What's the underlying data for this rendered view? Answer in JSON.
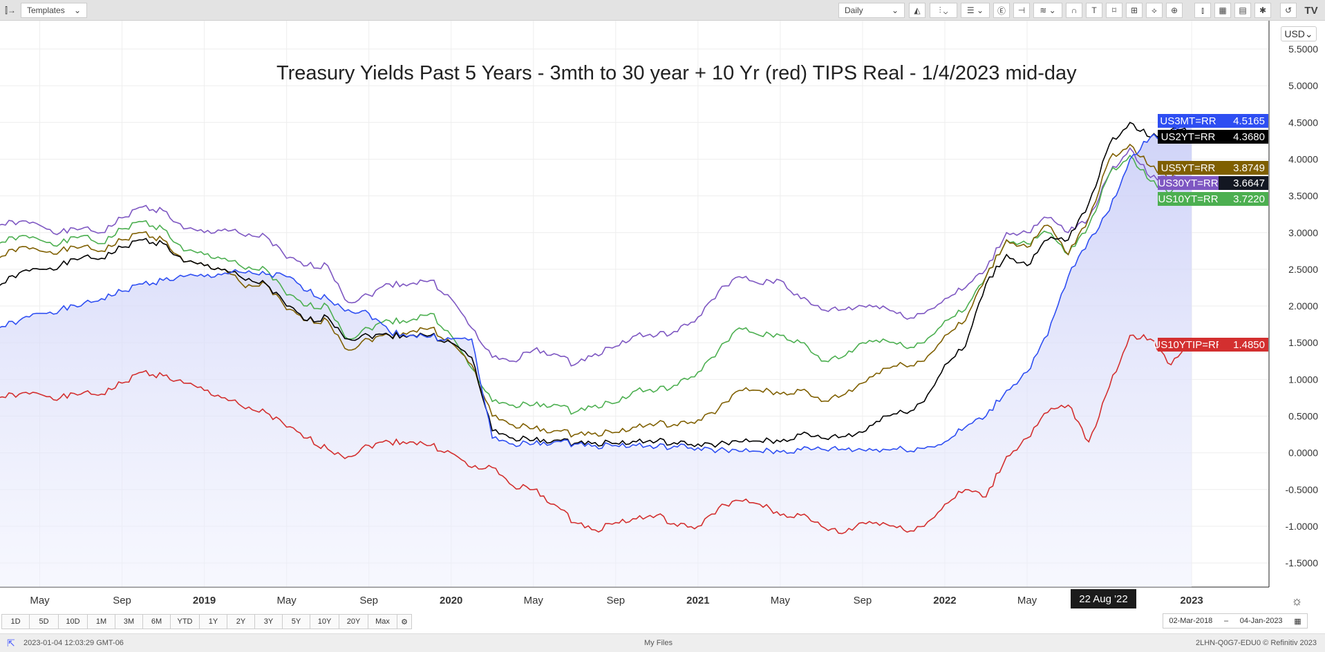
{
  "toolbar": {
    "templates_label": "Templates",
    "interval": "Daily",
    "currency": "USD"
  },
  "range_buttons": [
    "1D",
    "5D",
    "10D",
    "1M",
    "3M",
    "6M",
    "YTD",
    "1Y",
    "2Y",
    "3Y",
    "5Y",
    "10Y",
    "20Y",
    "Max"
  ],
  "date_range": {
    "from": "02-Mar-2018",
    "sep": "–",
    "to": "04-Jan-2023"
  },
  "crosshair_date": "22 Aug '22",
  "footer": {
    "timestamp": "2023-01-04 12:03:29 GMT-06",
    "center": "My Files",
    "right": "2LHN-Q0G7-EDU0  © Refinitiv 2023"
  },
  "chart_data": {
    "type": "line",
    "title": "Treasury Yields Past 5 Years - 3mth to 30 year + 10 Yr (red) TIPS Real - 1/4/2023 mid-day",
    "x_start": "2018-03",
    "x_end": "2023-01",
    "x_unit": "month",
    "ylim": [
      -1.75,
      5.75
    ],
    "y_ticks": [
      5.5,
      5.0,
      4.5,
      4.0,
      3.5,
      3.0,
      2.5,
      2.0,
      1.5,
      1.0,
      0.5,
      0.0,
      -0.5,
      -1.0,
      -1.5
    ],
    "y_tick_labels": [
      "5.5000",
      "5.0000",
      "4.5000",
      "4.0000",
      "3.5000",
      "3.0000",
      "2.5000",
      "2.0000",
      "1.5000",
      "1.0000",
      "0.5000",
      "0.0000",
      "-0.5000",
      "-1.0000",
      "-1.5000"
    ],
    "x_ticks": [
      {
        "label": "May",
        "m": 2
      },
      {
        "label": "Sep",
        "m": 6
      },
      {
        "label": "2019",
        "m": 10,
        "bold": true
      },
      {
        "label": "May",
        "m": 14
      },
      {
        "label": "Sep",
        "m": 18
      },
      {
        "label": "2020",
        "m": 22,
        "bold": true
      },
      {
        "label": "May",
        "m": 26
      },
      {
        "label": "Sep",
        "m": 30
      },
      {
        "label": "2021",
        "m": 34,
        "bold": true
      },
      {
        "label": "May",
        "m": 38
      },
      {
        "label": "Sep",
        "m": 42
      },
      {
        "label": "2022",
        "m": 46,
        "bold": true
      },
      {
        "label": "May",
        "m": 50
      },
      {
        "label": "2023",
        "m": 58,
        "bold": true
      }
    ],
    "series": [
      {
        "name": "US30YT=RR",
        "last": "3.6647",
        "color": "#7e57c2",
        "label_bg": "#7e57c2",
        "value_bg": "#131722",
        "values": [
          3.1,
          3.15,
          3.1,
          3.0,
          3.05,
          3.0,
          3.2,
          3.35,
          3.3,
          3.05,
          3.0,
          3.05,
          2.95,
          2.95,
          2.65,
          2.55,
          2.55,
          2.05,
          2.15,
          2.3,
          2.3,
          2.35,
          2.1,
          1.7,
          1.3,
          1.25,
          1.4,
          1.35,
          1.2,
          1.35,
          1.45,
          1.6,
          1.6,
          1.65,
          1.85,
          2.2,
          2.4,
          2.3,
          2.35,
          2.1,
          1.95,
          1.95,
          2.0,
          2.0,
          1.85,
          1.9,
          2.1,
          2.25,
          2.5,
          3.0,
          3.0,
          3.2,
          3.0,
          3.2,
          3.8,
          4.15,
          3.75,
          3.75,
          3.66
        ]
      },
      {
        "name": "US10YT=RR",
        "last": "3.7220",
        "color": "#4caf50",
        "label_bg": "#4caf50",
        "value_bg": "#4caf50",
        "values": [
          2.85,
          2.95,
          2.9,
          2.85,
          2.95,
          2.85,
          3.05,
          3.15,
          3.05,
          2.75,
          2.7,
          2.65,
          2.5,
          2.5,
          2.15,
          2.0,
          2.0,
          1.55,
          1.7,
          1.8,
          1.8,
          1.9,
          1.6,
          1.15,
          0.7,
          0.65,
          0.65,
          0.66,
          0.55,
          0.65,
          0.68,
          0.85,
          0.85,
          0.92,
          1.1,
          1.4,
          1.7,
          1.6,
          1.6,
          1.5,
          1.25,
          1.3,
          1.5,
          1.55,
          1.45,
          1.5,
          1.8,
          1.95,
          2.4,
          2.9,
          2.85,
          3.0,
          2.7,
          3.1,
          3.8,
          4.05,
          3.7,
          3.55,
          3.72
        ]
      },
      {
        "name": "US5YT=RR",
        "last": "3.8749",
        "color": "#7f5f00",
        "label_bg": "#7f5f00",
        "value_bg": "#7f5f00",
        "values": [
          2.65,
          2.8,
          2.75,
          2.75,
          2.8,
          2.75,
          2.9,
          3.0,
          2.9,
          2.6,
          2.55,
          2.5,
          2.25,
          2.3,
          1.95,
          1.8,
          1.8,
          1.4,
          1.55,
          1.6,
          1.65,
          1.7,
          1.5,
          1.2,
          0.5,
          0.38,
          0.33,
          0.3,
          0.25,
          0.27,
          0.28,
          0.35,
          0.4,
          0.37,
          0.45,
          0.6,
          0.85,
          0.85,
          0.8,
          0.85,
          0.7,
          0.78,
          0.95,
          1.15,
          1.2,
          1.25,
          1.6,
          1.8,
          2.4,
          2.9,
          2.8,
          3.1,
          2.7,
          3.2,
          4.0,
          4.2,
          3.9,
          3.75,
          3.87
        ]
      },
      {
        "name": "US2YT=RR",
        "last": "4.3680",
        "color": "#000000",
        "label_bg": "#000000",
        "value_bg": "#000000",
        "values": [
          2.27,
          2.45,
          2.5,
          2.55,
          2.65,
          2.65,
          2.8,
          2.9,
          2.85,
          2.6,
          2.55,
          2.5,
          2.35,
          2.3,
          2.0,
          1.8,
          1.85,
          1.55,
          1.6,
          1.6,
          1.6,
          1.6,
          1.5,
          1.3,
          0.3,
          0.2,
          0.17,
          0.17,
          0.13,
          0.14,
          0.13,
          0.15,
          0.16,
          0.12,
          0.12,
          0.12,
          0.15,
          0.16,
          0.15,
          0.25,
          0.2,
          0.22,
          0.28,
          0.5,
          0.55,
          0.7,
          1.2,
          1.45,
          2.3,
          2.7,
          2.55,
          2.9,
          2.9,
          3.4,
          4.2,
          4.5,
          4.3,
          4.4,
          4.37
        ]
      },
      {
        "name": "US3MT=RR",
        "last": "4.5165",
        "color": "#2e4ef2",
        "label_bg": "#2e4ef2",
        "value_bg": "#2e4ef2",
        "area": true,
        "values": [
          1.7,
          1.8,
          1.9,
          1.95,
          2.0,
          2.1,
          2.2,
          2.3,
          2.35,
          2.4,
          2.4,
          2.45,
          2.45,
          2.43,
          2.4,
          2.2,
          2.1,
          1.95,
          1.9,
          1.65,
          1.6,
          1.58,
          1.55,
          1.55,
          0.2,
          0.12,
          0.12,
          0.15,
          0.12,
          0.1,
          0.1,
          0.1,
          0.08,
          0.08,
          0.07,
          0.04,
          0.02,
          0.02,
          0.01,
          0.04,
          0.05,
          0.05,
          0.04,
          0.05,
          0.05,
          0.06,
          0.15,
          0.35,
          0.5,
          0.85,
          1.1,
          1.6,
          2.4,
          2.9,
          3.3,
          4.0,
          4.3,
          4.35,
          4.52
        ]
      },
      {
        "name": "US10YTIP=RR",
        "last": "1.4850",
        "color": "#d32f2f",
        "label_bg": "#d32f2f",
        "value_bg": "#d32f2f",
        "values": [
          0.75,
          0.8,
          0.8,
          0.75,
          0.8,
          0.8,
          0.95,
          1.1,
          1.05,
          0.95,
          0.85,
          0.75,
          0.6,
          0.55,
          0.35,
          0.2,
          0.05,
          -0.05,
          0.1,
          0.15,
          0.15,
          0.1,
          0.0,
          -0.2,
          -0.2,
          -0.45,
          -0.5,
          -0.7,
          -0.95,
          -1.05,
          -0.95,
          -0.9,
          -0.85,
          -1.0,
          -1.0,
          -0.75,
          -0.65,
          -0.7,
          -0.85,
          -0.85,
          -1.0,
          -1.1,
          -0.95,
          -0.95,
          -1.05,
          -1.0,
          -0.7,
          -0.5,
          -0.6,
          -0.05,
          0.2,
          0.55,
          0.65,
          0.15,
          0.9,
          1.6,
          1.55,
          1.2,
          1.49
        ]
      }
    ]
  }
}
